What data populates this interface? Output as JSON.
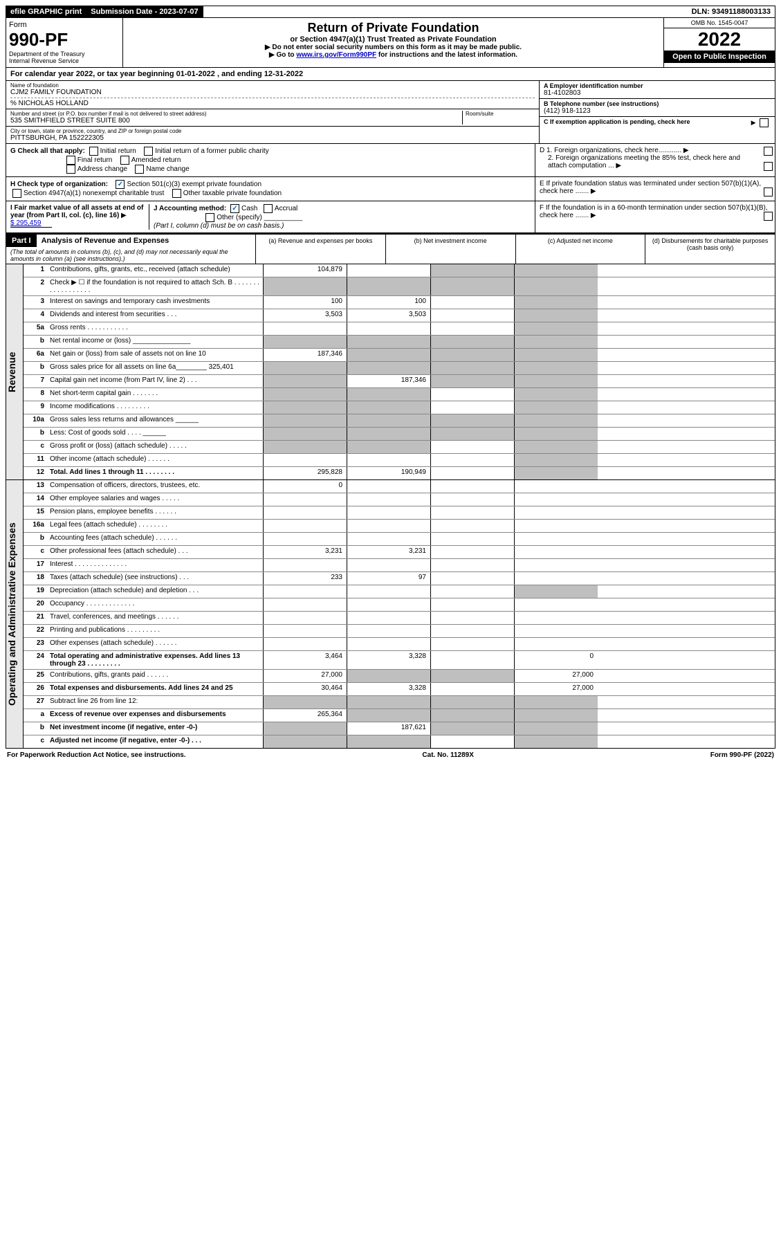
{
  "topbar": {
    "efile": "efile GRAPHIC print",
    "submission_label": "Submission Date - 2023-07-07",
    "dln": "DLN: 93491188003133"
  },
  "header": {
    "form_word": "Form",
    "form_number": "990-PF",
    "dept1": "Department of the Treasury",
    "dept2": "Internal Revenue Service",
    "title": "Return of Private Foundation",
    "subtitle": "or Section 4947(a)(1) Trust Treated as Private Foundation",
    "instr1": "▶ Do not enter social security numbers on this form as it may be made public.",
    "instr2_pre": "▶ Go to ",
    "instr2_link": "www.irs.gov/Form990PF",
    "instr2_post": " for instructions and the latest information.",
    "omb": "OMB No. 1545-0047",
    "year": "2022",
    "open": "Open to Public Inspection"
  },
  "cal_year": "For calendar year 2022, or tax year beginning 01-01-2022          , and ending 12-31-2022",
  "info": {
    "name_label": "Name of foundation",
    "name": "CJM2 FAMILY FOUNDATION",
    "care_of": "% NICHOLAS HOLLAND",
    "addr_label": "Number and street (or P.O. box number if mail is not delivered to street address)",
    "addr": "535 SMITHFIELD STREET SUITE 800",
    "room_label": "Room/suite",
    "city_label": "City or town, state or province, country, and ZIP or foreign postal code",
    "city": "PITTSBURGH, PA  152222305",
    "a_label": "A Employer identification number",
    "a_value": "81-4102803",
    "b_label": "B Telephone number (see instructions)",
    "b_value": "(412) 918-1123",
    "c_label": "C If exemption application is pending, check here"
  },
  "g": {
    "label": "G Check all that apply:",
    "opts": [
      "Initial return",
      "Initial return of a former public charity",
      "Final return",
      "Amended return",
      "Address change",
      "Name change"
    ]
  },
  "h": {
    "label": "H Check type of organization:",
    "opt1": "Section 501(c)(3) exempt private foundation",
    "opt2": "Section 4947(a)(1) nonexempt charitable trust",
    "opt3": "Other taxable private foundation"
  },
  "i": {
    "label": "I Fair market value of all assets at end of year (from Part II, col. (c), line 16)",
    "value": "$  295,459"
  },
  "j": {
    "label": "J Accounting method:",
    "cash": "Cash",
    "accrual": "Accrual",
    "other": "Other (specify)",
    "note": "(Part I, column (d) must be on cash basis.)"
  },
  "d": {
    "d1": "D 1. Foreign organizations, check here............",
    "d2": "2. Foreign organizations meeting the 85% test, check here and attach computation ...",
    "e": "E  If private foundation status was terminated under section 507(b)(1)(A), check here .......",
    "f": "F  If the foundation is in a 60-month termination under section 507(b)(1)(B), check here ......."
  },
  "part1": {
    "label": "Part I",
    "title": "Analysis of Revenue and Expenses",
    "title_note": "(The total of amounts in columns (b), (c), and (d) may not necessarily equal the amounts in column (a) (see instructions).)",
    "cols": {
      "a": "(a) Revenue and expenses per books",
      "b": "(b) Net investment income",
      "c": "(c) Adjusted net income",
      "d": "(d) Disbursements for charitable purposes (cash basis only)"
    }
  },
  "side_labels": {
    "revenue": "Revenue",
    "expenses": "Operating and Administrative Expenses"
  },
  "lines": [
    {
      "num": "1",
      "desc": "Contributions, gifts, grants, etc., received (attach schedule)",
      "a": "104,879",
      "b": "",
      "c": "g",
      "d": "g"
    },
    {
      "num": "2",
      "desc": "Check ▶ ☐ if the foundation is not required to attach Sch. B   . . . . . . . . . . . . . . . . . .",
      "nocells": true
    },
    {
      "num": "3",
      "desc": "Interest on savings and temporary cash investments",
      "a": "100",
      "b": "100",
      "c": "",
      "d": "g"
    },
    {
      "num": "4",
      "desc": "Dividends and interest from securities   .  .  .",
      "a": "3,503",
      "b": "3,503",
      "c": "",
      "d": "g"
    },
    {
      "num": "5a",
      "desc": "Gross rents    .  .  .  .  .  .  .  .  .  .  .",
      "a": "",
      "b": "",
      "c": "",
      "d": "g"
    },
    {
      "num": "b",
      "desc": "Net rental income or (loss)  _______________",
      "nocells": true
    },
    {
      "num": "6a",
      "desc": "Net gain or (loss) from sale of assets not on line 10",
      "a": "187,346",
      "b": "g",
      "c": "g",
      "d": "g"
    },
    {
      "num": "b",
      "desc": "Gross sales price for all assets on line 6a________ 325,401",
      "nocells": true
    },
    {
      "num": "7",
      "desc": "Capital gain net income (from Part IV, line 2)   .  .  .",
      "a": "g",
      "b": "187,346",
      "c": "g",
      "d": "g"
    },
    {
      "num": "8",
      "desc": "Net short-term capital gain   .  .  .  .  .  .  .",
      "a": "g",
      "b": "g",
      "c": "",
      "d": "g"
    },
    {
      "num": "9",
      "desc": "Income modifications  .  .  .  .  .  .  .  .  .",
      "a": "g",
      "b": "g",
      "c": "",
      "d": "g"
    },
    {
      "num": "10a",
      "desc": "Gross sales less returns and allowances  ______",
      "nocells": true
    },
    {
      "num": "b",
      "desc": "Less: Cost of goods sold     .  .  .  .  ______",
      "nocells": true
    },
    {
      "num": "c",
      "desc": "Gross profit or (loss) (attach schedule)   .  .  .  .  .",
      "a": "g",
      "b": "g",
      "c": "",
      "d": "g"
    },
    {
      "num": "11",
      "desc": "Other income (attach schedule)    .  .  .  .  .  .",
      "a": "",
      "b": "",
      "c": "",
      "d": "g"
    },
    {
      "num": "12",
      "desc": "Total. Add lines 1 through 11   .  .  .  .  .  .  .  .",
      "bold": true,
      "a": "295,828",
      "b": "190,949",
      "c": "",
      "d": "g"
    }
  ],
  "exp_lines": [
    {
      "num": "13",
      "desc": "Compensation of officers, directors, trustees, etc.",
      "a": "0",
      "b": "",
      "c": "",
      "d": ""
    },
    {
      "num": "14",
      "desc": "Other employee salaries and wages   .  .  .  .  .",
      "a": "",
      "b": "",
      "c": "",
      "d": ""
    },
    {
      "num": "15",
      "desc": "Pension plans, employee benefits  .  .  .  .  .  .",
      "a": "",
      "b": "",
      "c": "",
      "d": ""
    },
    {
      "num": "16a",
      "desc": "Legal fees (attach schedule) .  .  .  .  .  .  .  .",
      "a": "",
      "b": "",
      "c": "",
      "d": ""
    },
    {
      "num": "b",
      "desc": "Accounting fees (attach schedule)  .  .  .  .  .  .",
      "a": "",
      "b": "",
      "c": "",
      "d": ""
    },
    {
      "num": "c",
      "desc": "Other professional fees (attach schedule)    .  .  .",
      "a": "3,231",
      "b": "3,231",
      "c": "",
      "d": ""
    },
    {
      "num": "17",
      "desc": "Interest  .  .  .  .  .  .  .  .  .  .  .  .  .  .",
      "a": "",
      "b": "",
      "c": "",
      "d": ""
    },
    {
      "num": "18",
      "desc": "Taxes (attach schedule) (see instructions)     .  .  .",
      "a": "233",
      "b": "97",
      "c": "",
      "d": ""
    },
    {
      "num": "19",
      "desc": "Depreciation (attach schedule) and depletion   .  .  .",
      "a": "",
      "b": "",
      "c": "",
      "d": "g"
    },
    {
      "num": "20",
      "desc": "Occupancy .  .  .  .  .  .  .  .  .  .  .  .  .",
      "a": "",
      "b": "",
      "c": "",
      "d": ""
    },
    {
      "num": "21",
      "desc": "Travel, conferences, and meetings  .  .  .  .  .  .",
      "a": "",
      "b": "",
      "c": "",
      "d": ""
    },
    {
      "num": "22",
      "desc": "Printing and publications  .  .  .  .  .  .  .  .  .",
      "a": "",
      "b": "",
      "c": "",
      "d": ""
    },
    {
      "num": "23",
      "desc": "Other expenses (attach schedule)  .  .  .  .  .  .",
      "a": "",
      "b": "",
      "c": "",
      "d": ""
    },
    {
      "num": "24",
      "desc": "Total operating and administrative expenses. Add lines 13 through 23   .  .  .  .  .  .  .  .  .",
      "bold": true,
      "a": "3,464",
      "b": "3,328",
      "c": "",
      "d": "0"
    },
    {
      "num": "25",
      "desc": "Contributions, gifts, grants paid     .  .  .  .  .  .",
      "a": "27,000",
      "b": "g",
      "c": "g",
      "d": "27,000"
    },
    {
      "num": "26",
      "desc": "Total expenses and disbursements. Add lines 24 and 25",
      "bold": true,
      "a": "30,464",
      "b": "3,328",
      "c": "",
      "d": "27,000"
    },
    {
      "num": "27",
      "desc": "Subtract line 26 from line 12:",
      "nocells_border": true
    },
    {
      "num": "a",
      "desc": "Excess of revenue over expenses and disbursements",
      "bold": true,
      "a": "265,364",
      "b": "g",
      "c": "g",
      "d": "g"
    },
    {
      "num": "b",
      "desc": "Net investment income (if negative, enter -0-)",
      "bold": true,
      "a": "g",
      "b": "187,621",
      "c": "g",
      "d": "g"
    },
    {
      "num": "c",
      "desc": "Adjusted net income (if negative, enter -0-)   .  .  .",
      "bold": true,
      "a": "g",
      "b": "g",
      "c": "",
      "d": "g"
    }
  ],
  "footer": {
    "left": "For Paperwork Reduction Act Notice, see instructions.",
    "center": "Cat. No. 11289X",
    "right": "Form 990-PF (2022)"
  }
}
